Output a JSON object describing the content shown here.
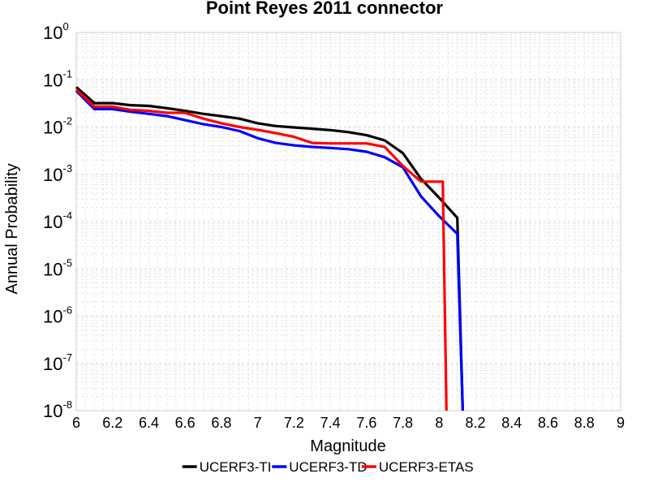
{
  "chart_data": {
    "type": "line",
    "title": "Point Reyes 2011 connector",
    "xlabel": "Magnitude",
    "ylabel": "Annual Probability",
    "xlim": [
      6,
      9
    ],
    "ylim": [
      1e-08,
      1
    ],
    "yscale": "log",
    "grid": true,
    "legend_position": "bottom-center",
    "xticks": [
      "6",
      "6.2",
      "6.4",
      "6.6",
      "6.8",
      "7",
      "7.2",
      "7.4",
      "7.6",
      "7.8",
      "8",
      "8.2",
      "8.4",
      "8.6",
      "8.8",
      "9"
    ],
    "yticks": [
      {
        "base": "10",
        "exp": "-8"
      },
      {
        "base": "10",
        "exp": "-7"
      },
      {
        "base": "10",
        "exp": "-6"
      },
      {
        "base": "10",
        "exp": "-5"
      },
      {
        "base": "10",
        "exp": "-4"
      },
      {
        "base": "10",
        "exp": "-3"
      },
      {
        "base": "10",
        "exp": "-2"
      },
      {
        "base": "10",
        "exp": "-1"
      },
      {
        "base": "10",
        "exp": "0"
      }
    ],
    "series": [
      {
        "name": "UCERF3-TI",
        "color": "#000000",
        "x": [
          6.0,
          6.1,
          6.2,
          6.3,
          6.4,
          6.5,
          6.6,
          6.7,
          6.8,
          6.9,
          7.0,
          7.1,
          7.2,
          7.3,
          7.4,
          7.5,
          7.6,
          7.7,
          7.8,
          7.9,
          8.0,
          8.1,
          8.13
        ],
        "y": [
          0.07,
          0.032,
          0.032,
          0.029,
          0.028,
          0.025,
          0.022,
          0.019,
          0.017,
          0.015,
          0.012,
          0.0105,
          0.0098,
          0.0092,
          0.0086,
          0.0078,
          0.0067,
          0.0052,
          0.0028,
          0.0008,
          0.00032,
          0.00012,
          1e-08
        ]
      },
      {
        "name": "UCERF3-TD",
        "color": "#0000ff",
        "x": [
          6.0,
          6.1,
          6.2,
          6.3,
          6.4,
          6.5,
          6.6,
          6.7,
          6.8,
          6.9,
          7.0,
          7.1,
          7.2,
          7.3,
          7.4,
          7.5,
          7.6,
          7.7,
          7.8,
          7.9,
          8.0,
          8.1,
          8.13
        ],
        "y": [
          0.058,
          0.024,
          0.024,
          0.021,
          0.019,
          0.017,
          0.014,
          0.0115,
          0.01,
          0.0082,
          0.0058,
          0.0046,
          0.0041,
          0.0038,
          0.0036,
          0.0034,
          0.003,
          0.0023,
          0.0014,
          0.00034,
          0.00013,
          5.5e-05,
          1e-08
        ]
      },
      {
        "name": "UCERF3-ETAS",
        "color": "#ff0000",
        "x": [
          6.0,
          6.1,
          6.2,
          6.3,
          6.4,
          6.5,
          6.6,
          6.7,
          6.8,
          6.9,
          7.0,
          7.1,
          7.2,
          7.3,
          7.4,
          7.5,
          7.6,
          7.7,
          7.8,
          7.9,
          8.0,
          8.02,
          8.04
        ],
        "y": [
          0.062,
          0.027,
          0.027,
          0.023,
          0.022,
          0.02,
          0.02,
          0.015,
          0.012,
          0.01,
          0.0087,
          0.0074,
          0.0062,
          0.0046,
          0.0045,
          0.0045,
          0.0045,
          0.0038,
          0.0015,
          0.0007,
          0.0007,
          0.0007,
          1e-08
        ]
      }
    ]
  }
}
